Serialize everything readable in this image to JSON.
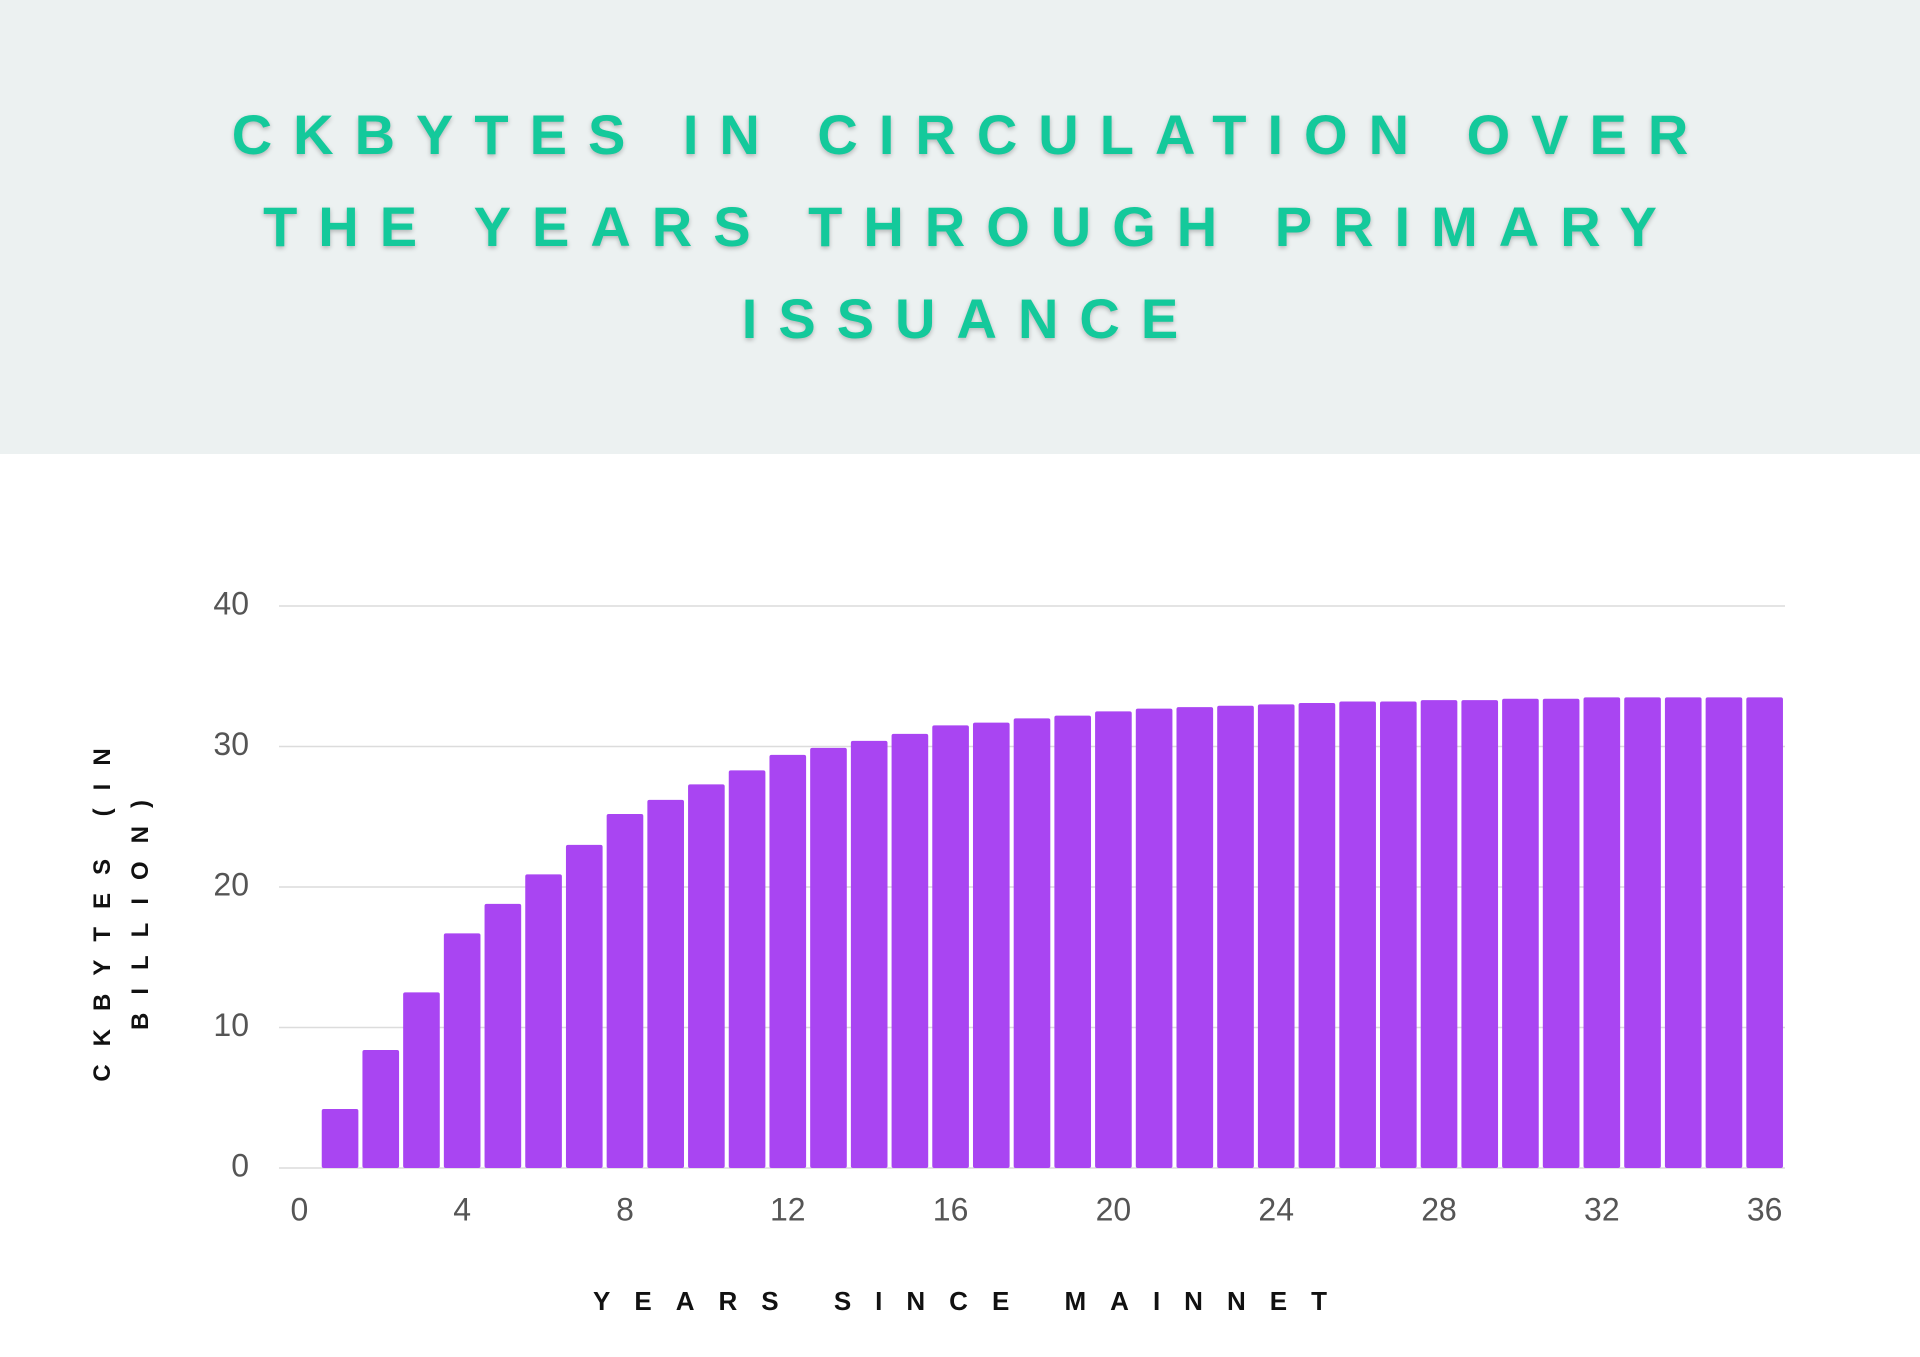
{
  "chart_data": {
    "type": "bar",
    "title": "CKBYTES IN CIRCULATION OVER THE YEARS THROUGH PRIMARY ISSUANCE",
    "x_label": "YEARS SINCE MAINNET",
    "y_label": "CKBYTES (IN BILLION)",
    "x": [
      1,
      2,
      3,
      4,
      5,
      6,
      7,
      8,
      9,
      10,
      11,
      12,
      13,
      14,
      15,
      16,
      17,
      18,
      19,
      20,
      21,
      22,
      23,
      24,
      25,
      26,
      27,
      28,
      29,
      30,
      31,
      32,
      33,
      34,
      35,
      36
    ],
    "values": [
      4.2,
      8.4,
      12.5,
      16.7,
      18.8,
      20.9,
      23.0,
      25.2,
      26.2,
      27.3,
      28.3,
      29.4,
      29.9,
      30.4,
      30.9,
      31.5,
      31.7,
      32.0,
      32.2,
      32.5,
      32.7,
      32.8,
      32.9,
      33.0,
      33.1,
      33.2,
      33.2,
      33.3,
      33.3,
      33.4,
      33.4,
      33.5,
      33.5,
      33.5,
      33.5,
      33.5
    ],
    "color": "#a945f2",
    "xlim": [
      -0.5,
      36.5
    ],
    "xticks": [
      0,
      4,
      8,
      12,
      16,
      20,
      24,
      28,
      32,
      36
    ],
    "ylim": [
      0,
      40
    ],
    "yticks": [
      0,
      10,
      20,
      30,
      40
    ],
    "grid": true
  }
}
